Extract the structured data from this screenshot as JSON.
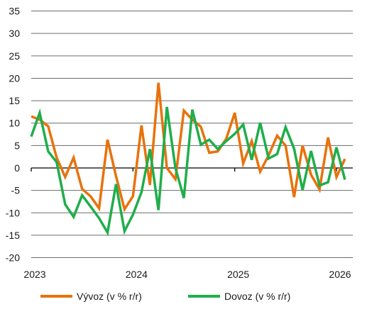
{
  "chart_data": {
    "type": "line",
    "title": "",
    "xlabel": "",
    "ylabel": "",
    "ylim": [
      -20,
      35
    ],
    "yticks": [
      35,
      30,
      25,
      20,
      15,
      10,
      5,
      0,
      -5,
      -10,
      -15,
      -20
    ],
    "xlim": [
      "2023-01",
      "2026-03"
    ],
    "xticks": [
      "2023",
      "2024",
      "2025",
      "2026"
    ],
    "grid": "horizontal",
    "legend_position": "bottom",
    "x": [
      "2023-01",
      "2023-02",
      "2023-03",
      "2023-04",
      "2023-05",
      "2023-06",
      "2023-07",
      "2023-08",
      "2023-09",
      "2023-10",
      "2023-11",
      "2023-12",
      "2024-01",
      "2024-02",
      "2024-03",
      "2024-04",
      "2024-05",
      "2024-06",
      "2024-07",
      "2024-08",
      "2024-09",
      "2024-10",
      "2024-11",
      "2024-12",
      "2025-01",
      "2025-02",
      "2025-03",
      "2025-04",
      "2025-05",
      "2025-06",
      "2025-07",
      "2025-08",
      "2025-09",
      "2025-10",
      "2025-11",
      "2025-12",
      "2026-01",
      "2026-02"
    ],
    "series": [
      {
        "name": "Vývoz (v % r/r)",
        "color": "#e8720c",
        "values": [
          11.5,
          10.8,
          9.3,
          2.3,
          -2.0,
          2.3,
          -4.7,
          -6.3,
          -9.0,
          6.3,
          -1.8,
          -9.2,
          -6.3,
          9.5,
          -3.8,
          19.0,
          0.0,
          -2.5,
          12.8,
          10.8,
          9.2,
          3.4,
          3.7,
          6.5,
          12.3,
          1.0,
          6.0,
          -0.8,
          2.8,
          7.2,
          5.0,
          -6.5,
          5.0,
          -1.5,
          -4.8,
          6.8,
          -2.0,
          2.0
        ]
      },
      {
        "name": "Dovoz (v % r/r)",
        "color": "#1fae4b",
        "values": [
          7.0,
          12.3,
          3.7,
          1.3,
          -8.1,
          -10.9,
          -6.1,
          -8.6,
          -11.2,
          -14.4,
          -3.6,
          -14.1,
          -10.4,
          -5.4,
          4.2,
          -9.4,
          13.6,
          0.0,
          -6.7,
          13.0,
          5.2,
          6.3,
          4.2,
          6.0,
          7.6,
          9.7,
          1.8,
          10.1,
          2.1,
          3.1,
          9.1,
          4.3,
          -4.9,
          3.8,
          -3.9,
          -3.2,
          4.6,
          -2.6
        ]
      }
    ],
    "legend": {
      "items": [
        {
          "label": "Vývoz (v % r/r)",
          "color": "#e8720c"
        },
        {
          "label": "Dovoz (v % r/r)",
          "color": "#1fae4b"
        }
      ]
    }
  }
}
